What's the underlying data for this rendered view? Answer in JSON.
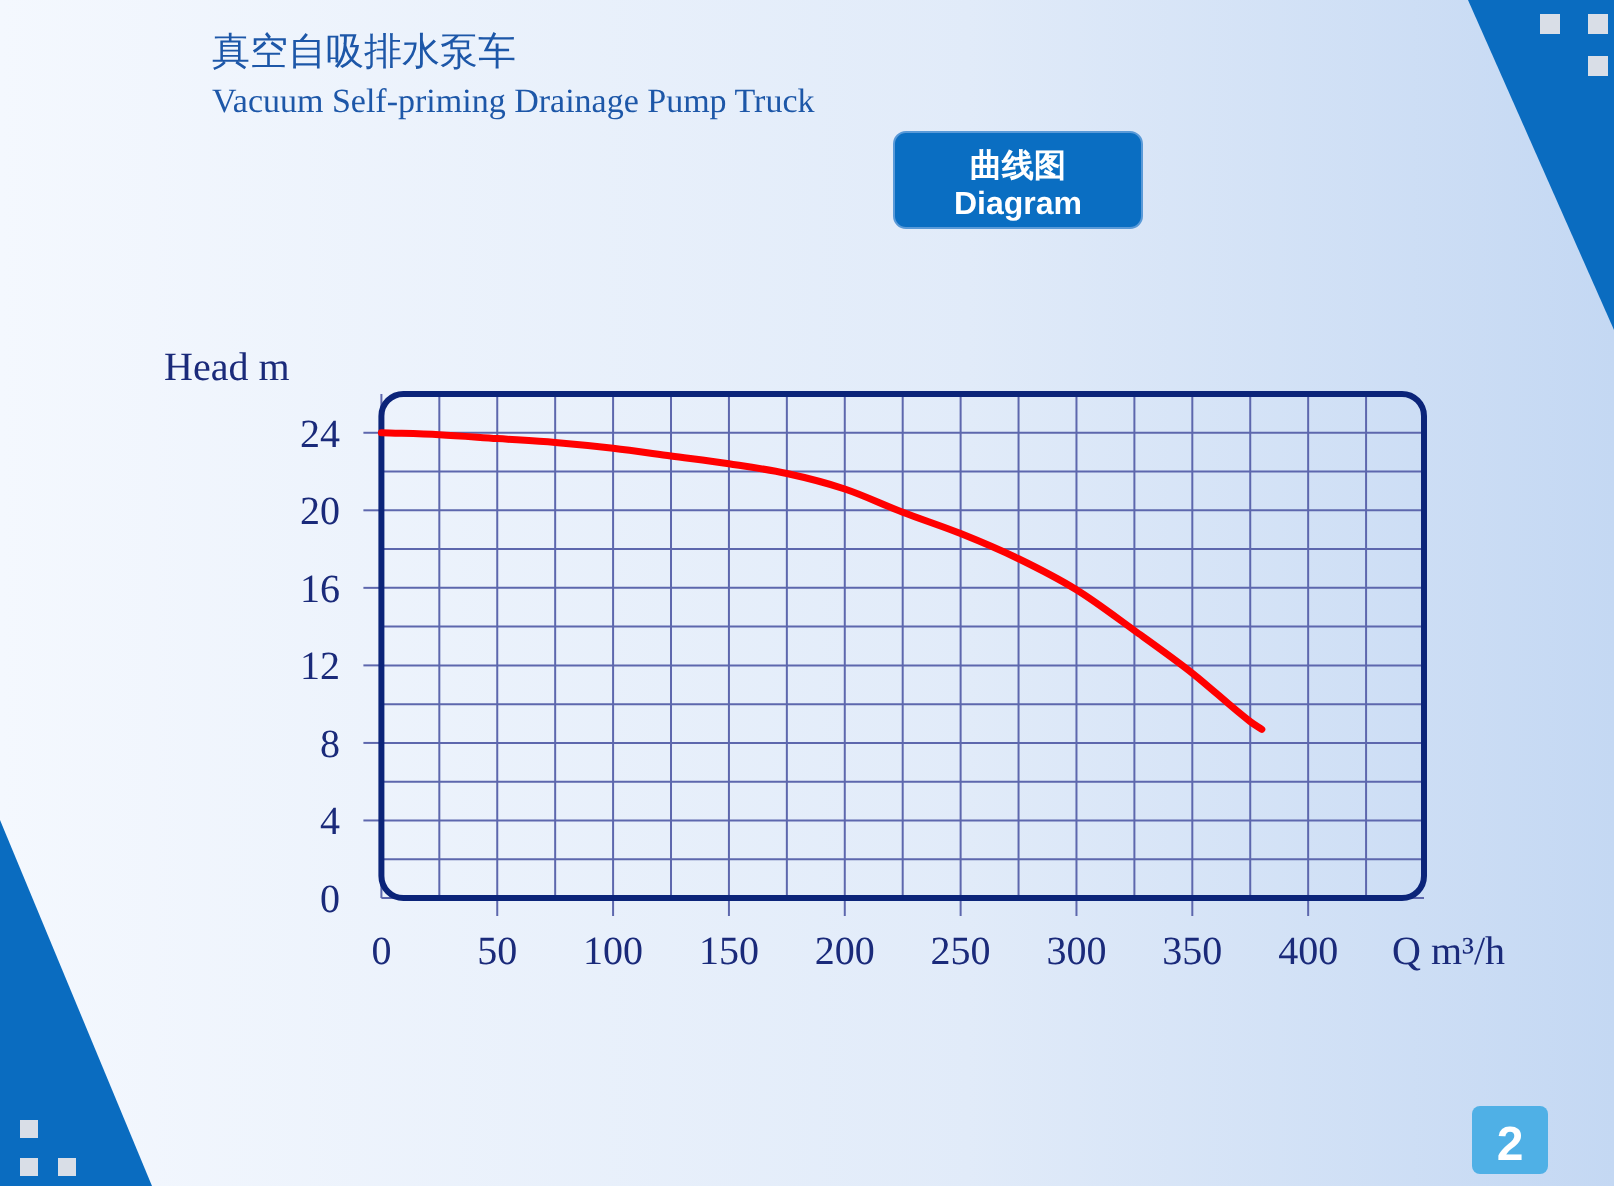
{
  "chart_data": {
    "type": "line",
    "title": "真空自吸排水泵车",
    "subtitle": "Vacuum Self-priming Drainage Pump Truck",
    "annotations": [
      "曲线图",
      "Diagram",
      "2"
    ],
    "xlabel": "Q m³/h",
    "ylabel": "Head m",
    "x": [
      0,
      25,
      50,
      75,
      100,
      125,
      150,
      175,
      200,
      225,
      250,
      275,
      300,
      325,
      350,
      375,
      380
    ],
    "series": [
      {
        "color": "#ff0000",
        "values": [
          24.0,
          23.9,
          23.7,
          23.5,
          23.2,
          22.8,
          22.4,
          21.9,
          21.1,
          19.9,
          18.8,
          17.5,
          15.9,
          13.8,
          11.6,
          9.1,
          8.7
        ]
      }
    ],
    "xlim": [
      0,
      450
    ],
    "ylim": [
      0,
      26
    ],
    "xticks": [
      0,
      50,
      100,
      150,
      200,
      250,
      300,
      350,
      400
    ],
    "yticks": [
      0,
      4,
      8,
      12,
      16,
      20,
      24
    ],
    "grid": true,
    "line_style": "solid"
  }
}
